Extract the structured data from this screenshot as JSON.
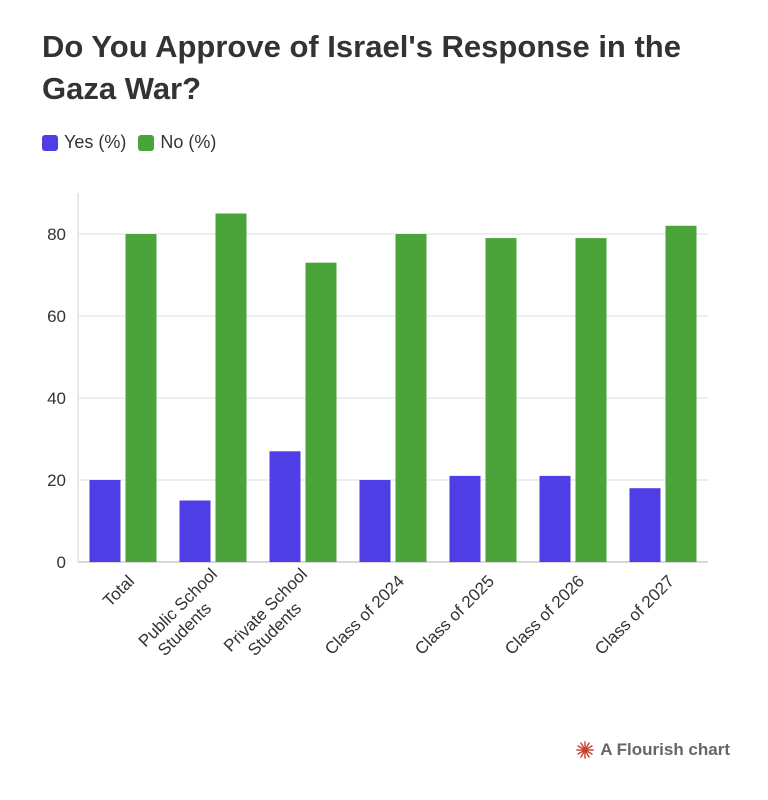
{
  "title": "Do You Approve of Israel's Response in the Gaza War?",
  "footer": {
    "text": "A Flourish chart",
    "icon": "flourish-logo-icon",
    "icon_color": "#c9402f"
  },
  "legend": [
    {
      "label": "Yes (%)",
      "color": "#4f3de6"
    },
    {
      "label": "No (%)",
      "color": "#4ba43a"
    }
  ],
  "chart_data": {
    "type": "bar",
    "title": "Do You Approve of Israel's Response in the Gaza War?",
    "categories": [
      [
        "Total"
      ],
      [
        "Public School",
        "Students"
      ],
      [
        "Private School",
        "Students"
      ],
      [
        "Class of 2024"
      ],
      [
        "Class of 2025"
      ],
      [
        "Class of 2026"
      ],
      [
        "Class of 2027"
      ]
    ],
    "series": [
      {
        "name": "Yes (%)",
        "color": "#4f3de6",
        "values": [
          20,
          15,
          27,
          20,
          21,
          21,
          18
        ]
      },
      {
        "name": "No (%)",
        "color": "#4ba43a",
        "values": [
          80,
          85,
          73,
          80,
          79,
          79,
          82
        ]
      }
    ],
    "yticks": [
      0,
      20,
      40,
      60,
      80
    ],
    "ylim": [
      0,
      90
    ],
    "grid": true,
    "legend_position": "top-left",
    "xlabel": "",
    "ylabel": ""
  }
}
